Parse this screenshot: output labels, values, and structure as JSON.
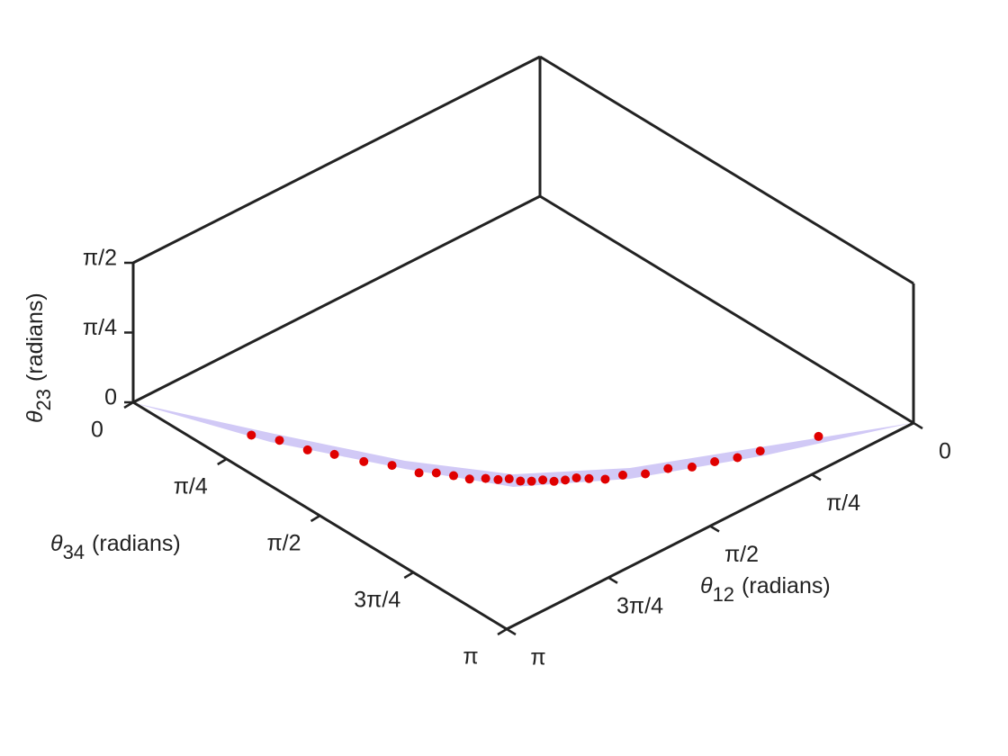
{
  "chart_data": {
    "type": "scatter3d",
    "xlabel": {
      "symbol": "θ",
      "subscript": "12",
      "text": "(radians)"
    },
    "ylabel": {
      "symbol": "θ",
      "subscript": "34",
      "text": "(radians)"
    },
    "zlabel": {
      "symbol": "θ",
      "subscript": "23",
      "text": "(radians)"
    },
    "color": "#e00000",
    "x": [
      2.89,
      2.82,
      2.75,
      2.68,
      2.6,
      2.52,
      2.44,
      2.38,
      2.32,
      2.27,
      2.21,
      2.16,
      2.12,
      2.07,
      2.03,
      1.98,
      1.93,
      1.88,
      1.83,
      1.77,
      1.7,
      1.61,
      1.5,
      1.38,
      1.25,
      1.13,
      1.0,
      0.87,
      0.53
    ],
    "y": [
      0.72,
      0.88,
      1.04,
      1.19,
      1.35,
      1.5,
      1.64,
      1.72,
      1.8,
      1.88,
      1.95,
      2.0,
      2.05,
      2.09,
      2.14,
      2.18,
      2.22,
      2.26,
      2.3,
      2.34,
      2.4,
      2.45,
      2.52,
      2.58,
      2.64,
      2.7,
      2.75,
      2.8,
      2.92
    ],
    "z": [
      0.03,
      0.05,
      0.02,
      0.04,
      0.03,
      0.05,
      0.02,
      0.04,
      0.03,
      0.02,
      0.04,
      0.03,
      0.05,
      0.02,
      0.03,
      0.04,
      0.02,
      0.03,
      0.05,
      0.03,
      0.02,
      0.04,
      0.03,
      0.05,
      0.02,
      0.04,
      0.03,
      0.05,
      0.06
    ],
    "xlim": [
      0,
      3.1416
    ],
    "ylim": [
      0,
      3.1416
    ],
    "zlim": [
      0,
      1.5708
    ],
    "xticks": [
      0,
      {
        "value": 0.7854,
        "label": "π/4"
      },
      {
        "value": 1.5708,
        "label": "π/2"
      },
      {
        "value": 2.3562,
        "label": "3π/4"
      },
      {
        "value": 3.1416,
        "label": "π"
      }
    ],
    "yticks": [
      0,
      {
        "value": 0.7854,
        "label": "π/4"
      },
      {
        "value": 1.5708,
        "label": "π/2"
      },
      {
        "value": 2.3562,
        "label": "3π/4"
      },
      {
        "value": 3.1416,
        "label": "π"
      }
    ],
    "zticks": [
      0,
      {
        "value": 0.7854,
        "label": "π/4"
      },
      {
        "value": 1.5708,
        "label": "π/2"
      }
    ]
  }
}
